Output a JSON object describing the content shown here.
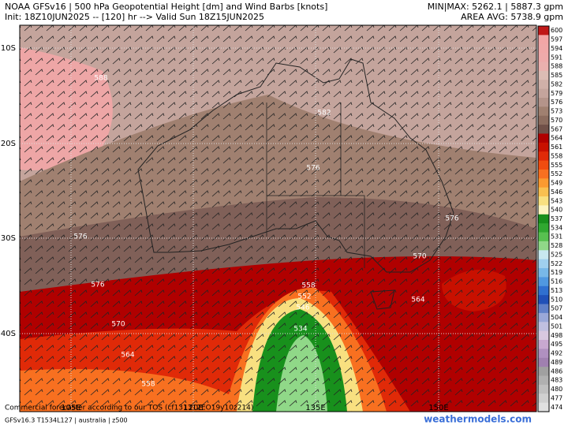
{
  "header": {
    "title": "NOAA GFSv16 | 500 hPa Geopotential Height [dm] and Wind Barbs [knots]",
    "init": "Init: 18Z10JUN2025 -- [120] hr --> Valid Sun 18Z15JUN2025",
    "minmax": "MIN|MAX: 5262.1 | 5887.3 gpm",
    "avg": "AREA AVG: 5738.9 gpm"
  },
  "map": {
    "lat_labels": [
      "10S",
      "20S",
      "30S",
      "40S"
    ],
    "lon_labels": [
      "105E",
      "120E",
      "135E",
      "150E"
    ],
    "contour_labels": [
      "588",
      "582",
      "576",
      "576",
      "576",
      "576",
      "570",
      "570",
      "564",
      "564",
      "558",
      "558",
      "552",
      "546",
      "534"
    ]
  },
  "colorbar": {
    "levels": [
      600,
      597,
      594,
      591,
      588,
      585,
      582,
      579,
      576,
      573,
      570,
      567,
      564,
      561,
      558,
      555,
      552,
      549,
      546,
      543,
      540,
      537,
      534,
      531,
      528,
      525,
      522,
      519,
      516,
      513,
      510,
      507,
      504,
      501,
      498,
      495,
      492,
      489,
      486,
      483,
      480,
      477,
      474
    ],
    "colors": [
      "#c01818",
      "#f2a6a6",
      "#f0a8a8",
      "#eeaaaa",
      "#eab0ae",
      "#dcbcb4",
      "#d0b0a8",
      "#c4a49c",
      "#b4948a",
      "#a08070",
      "#8c6c5e",
      "#705048",
      "#b00000",
      "#c81000",
      "#e02a08",
      "#f04c10",
      "#f87020",
      "#fa9a30",
      "#f8c050",
      "#f8e080",
      "#fcf4c0",
      "#18901c",
      "#30a830",
      "#58c050",
      "#90d888",
      "#c8e8f0",
      "#a0d0ee",
      "#78b8e8",
      "#5098e0",
      "#3070d0",
      "#2050b8",
      "#6080c8",
      "#9aa8d8",
      "#c0c0e0",
      "#d8c8e0",
      "#c8a8d0",
      "#b090c0",
      "#a080b0",
      "#a0a0a0",
      "#b0b0b0",
      "#c0c0c0",
      "#d0d0d0",
      "#e0e0e0"
    ]
  },
  "footer": {
    "tos": "Commercial forecaster according to our TOS (cf131312EO19y10z214)",
    "model": "GFSv16.3 T1534L127 | australia | z500",
    "site": "weathermodels.com"
  }
}
